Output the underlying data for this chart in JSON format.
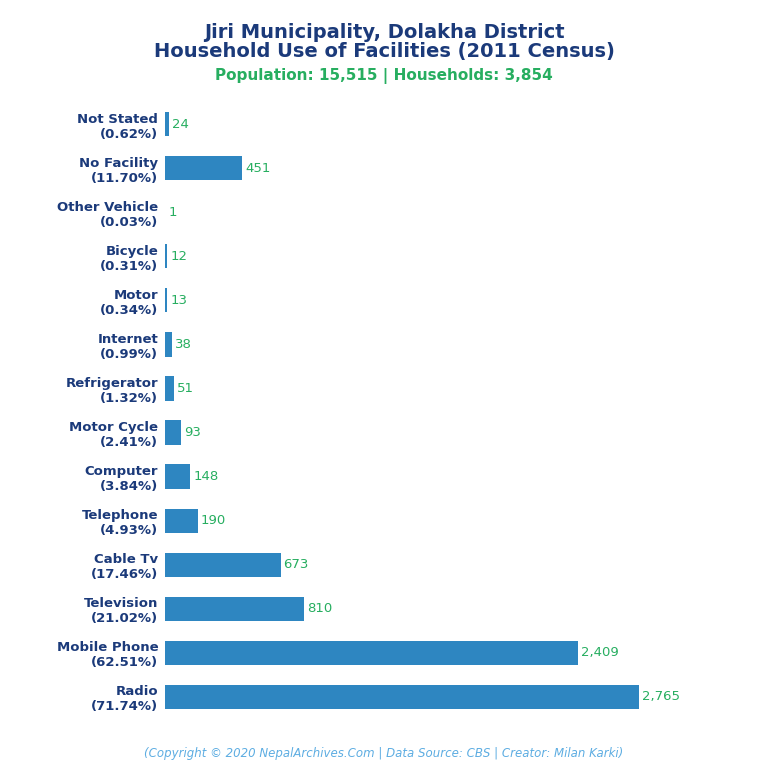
{
  "title_line1": "Jiri Municipality, Dolakha District",
  "title_line2": "Household Use of Facilities (2011 Census)",
  "subtitle": "Population: 15,515 | Households: 3,854",
  "footer": "(Copyright © 2020 NepalArchives.Com | Data Source: CBS | Creator: Milan Karki)",
  "categories": [
    "Not Stated\n(0.62%)",
    "No Facility\n(11.70%)",
    "Other Vehicle\n(0.03%)",
    "Bicycle\n(0.31%)",
    "Motor\n(0.34%)",
    "Internet\n(0.99%)",
    "Refrigerator\n(1.32%)",
    "Motor Cycle\n(2.41%)",
    "Computer\n(3.84%)",
    "Telephone\n(4.93%)",
    "Cable Tv\n(17.46%)",
    "Television\n(21.02%)",
    "Mobile Phone\n(62.51%)",
    "Radio\n(71.74%)"
  ],
  "values": [
    24,
    451,
    1,
    12,
    13,
    38,
    51,
    93,
    148,
    190,
    673,
    810,
    2409,
    2765
  ],
  "bar_color": "#2E86C1",
  "label_color": "#27AE60",
  "title_color": "#1B3A7A",
  "subtitle_color": "#27AE60",
  "footer_color": "#5DADE2",
  "background_color": "#FFFFFF",
  "title_fontsize": 14,
  "subtitle_fontsize": 11,
  "label_fontsize": 9.5,
  "ytick_fontsize": 9.5,
  "footer_fontsize": 8.5
}
